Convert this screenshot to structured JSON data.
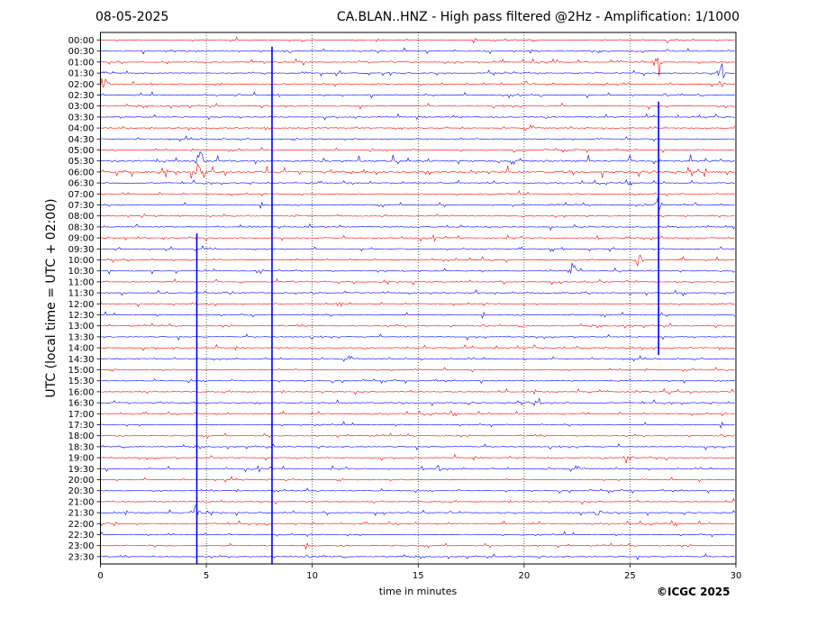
{
  "header": {
    "date": "08-05-2025",
    "title": "CA.BLAN..HNZ - High pass filtered @2Hz - Amplification: 1/1000"
  },
  "footer": {
    "credit": "©ICGC 2025"
  },
  "chart_data": {
    "type": "line",
    "title": "CA.BLAN..HNZ - High pass filtered @2Hz - Amplification: 1/1000",
    "xlabel": "time in minutes",
    "ylabel": "UTC (local time = UTC + 02:00)",
    "xlim": [
      0,
      30
    ],
    "x_ticks": [
      0,
      5,
      10,
      15,
      20,
      25,
      30
    ],
    "grid": "vertical dotted at every 5 minutes",
    "row_labels": [
      "00:00",
      "00:30",
      "01:00",
      "01:30",
      "02:00",
      "02:30",
      "03:00",
      "03:30",
      "04:00",
      "04:30",
      "05:00",
      "05:30",
      "06:00",
      "06:30",
      "07:00",
      "07:30",
      "08:00",
      "08:30",
      "09:00",
      "09:30",
      "10:00",
      "10:30",
      "11:00",
      "11:30",
      "12:00",
      "12:30",
      "13:00",
      "13:30",
      "14:00",
      "14:30",
      "15:00",
      "15:30",
      "16:00",
      "16:30",
      "17:00",
      "17:30",
      "18:00",
      "18:30",
      "19:00",
      "19:30",
      "20:00",
      "20:30",
      "21:00",
      "21:30",
      "22:00",
      "22:30",
      "23:00",
      "23:30"
    ],
    "trace_colors": [
      "#ff0000",
      "#0000ff"
    ],
    "events": [
      {
        "row": "01:30",
        "minute": 29.3,
        "amplitude": 2.0
      },
      {
        "row": "02:00",
        "minute": 0.15,
        "amplitude": 1.4
      },
      {
        "row": "01:00",
        "minute": 26.3,
        "amplitude": 2.5
      },
      {
        "row": "05:30",
        "minute": 4.7,
        "amplitude": 1.2
      },
      {
        "row": "06:00",
        "minute": 4.6,
        "amplitude": 1.0
      },
      {
        "row": "07:30",
        "minute": 26.3,
        "amplitude": 1.0
      },
      {
        "row": "10:00",
        "minute": 25.4,
        "amplitude": 1.2
      },
      {
        "row": "10:30",
        "minute": 22.3,
        "amplitude": 1.3
      },
      {
        "row": "12:00",
        "minute": 11.3,
        "amplitude": 0.5
      },
      {
        "row": "16:30",
        "minute": 20.7,
        "amplitude": 0.6
      },
      {
        "row": "19:00",
        "minute": 24.9,
        "amplitude": 1.0
      },
      {
        "row": "19:30",
        "minute": 15.9,
        "amplitude": 0.5
      },
      {
        "row": "21:30",
        "minute": 4.6,
        "amplitude": 1.5
      },
      {
        "row": "21:30",
        "minute": 23.5,
        "amplitude": 0.6
      }
    ],
    "spikes": [
      {
        "minute": 8.1,
        "from": "00:30",
        "to": "23:30"
      },
      {
        "minute": 4.55,
        "from": "09:00",
        "to": "23:30"
      },
      {
        "minute": 26.35,
        "from": "03:00",
        "to": "14:00"
      }
    ]
  }
}
